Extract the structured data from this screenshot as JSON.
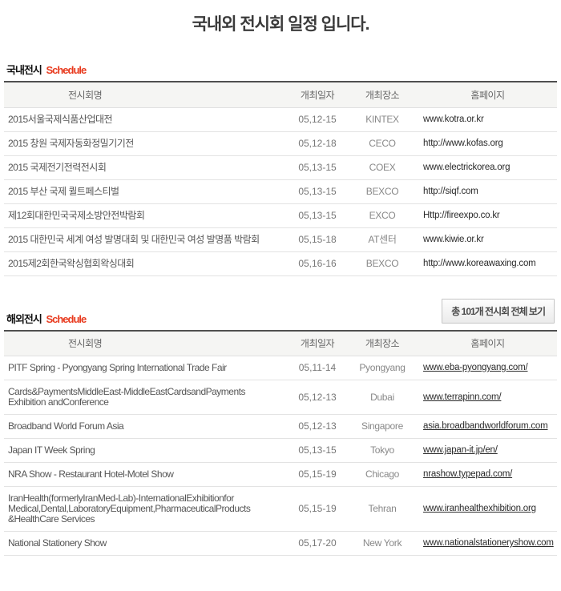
{
  "page": {
    "title": "국내외 전시회 일정 입니다."
  },
  "table_headers": [
    "전시회명",
    "개최일자",
    "개최장소",
    "홈페이지"
  ],
  "domestic": {
    "title_ko": "국내전시",
    "title_en": "Schedule",
    "rows": [
      {
        "name": "2015서울국제식품산업대전",
        "date": "05,12-15",
        "venue": "KINTEX",
        "homepage": "www.kotra.or.kr"
      },
      {
        "name": "2015 창원 국제자동화정밀기기전",
        "date": "05,12-18",
        "venue": "CECO",
        "homepage": "http://www.kofas.org"
      },
      {
        "name": "2015 국제전기전력전시회",
        "date": "05,13-15",
        "venue": "COEX",
        "homepage": "www.electrickorea.org"
      },
      {
        "name": "2015 부산 국제 퀼트페스티벌",
        "date": "05,13-15",
        "venue": "BEXCO",
        "homepage": "http://siqf.com"
      },
      {
        "name": "제12회대한민국국제소방안전박람회",
        "date": "05,13-15",
        "venue": "EXCO",
        "homepage": "Http://fireexpo.co.kr"
      },
      {
        "name": "2015 대한민국 세계 여성 발명대회 및 대한민국 여성 발명품 박람회",
        "date": "05,15-18",
        "venue": "AT센터",
        "homepage": "www.kiwie.or.kr"
      },
      {
        "name": "2015제2회한국왁싱협회왁싱대회",
        "date": "05,16-16",
        "venue": "BEXCO",
        "homepage": "http://www.koreawaxing.com"
      }
    ]
  },
  "overseas": {
    "title_ko": "해외전시",
    "title_en": "Schedule",
    "view_all_label": "총 101개 전시회 전체 보기",
    "rows": [
      {
        "name": "PITF Spring - Pyongyang Spring International Trade Fair",
        "date": "05,11-14",
        "venue": "Pyongyang",
        "homepage": "www.eba-pyongyang.com/"
      },
      {
        "name": "Cards&PaymentsMiddleEast-MiddleEastCardsandPayments Exhibition andConference",
        "date": "05,12-13",
        "venue": "Dubai",
        "homepage": "www.terrapinn.com/"
      },
      {
        "name": "Broadband World Forum Asia",
        "date": "05,12-13",
        "venue": "Singapore",
        "homepage": "asia.broadbandworldforum.com"
      },
      {
        "name": "Japan IT Week Spring",
        "date": "05,13-15",
        "venue": "Tokyo",
        "homepage": "www.japan-it.jp/en/"
      },
      {
        "name": "NRA Show - Restaurant Hotel-Motel Show",
        "date": "05,15-19",
        "venue": "Chicago",
        "homepage": "nrashow.typepad.com/"
      },
      {
        "name": "IranHealth(formerlyIranMed-Lab)-InternationalExhibitionfor Medical,Dental,LaboratoryEquipment,PharmaceuticalProducts &HealthCare Services",
        "date": "05,15-19",
        "venue": "Tehran",
        "homepage": "www.iranhealthexhibition.org"
      },
      {
        "name": "National Stationery Show",
        "date": "05,17-20",
        "venue": "New York",
        "homepage": "www.nationalstationeryshow.com"
      }
    ]
  },
  "colors": {
    "accent_red": "#e8391d",
    "title_text": "#3b3b3b",
    "section_rule": "#4f4f4f",
    "header_bg": "#f5f5f3",
    "row_border": "#e3e3e3"
  }
}
